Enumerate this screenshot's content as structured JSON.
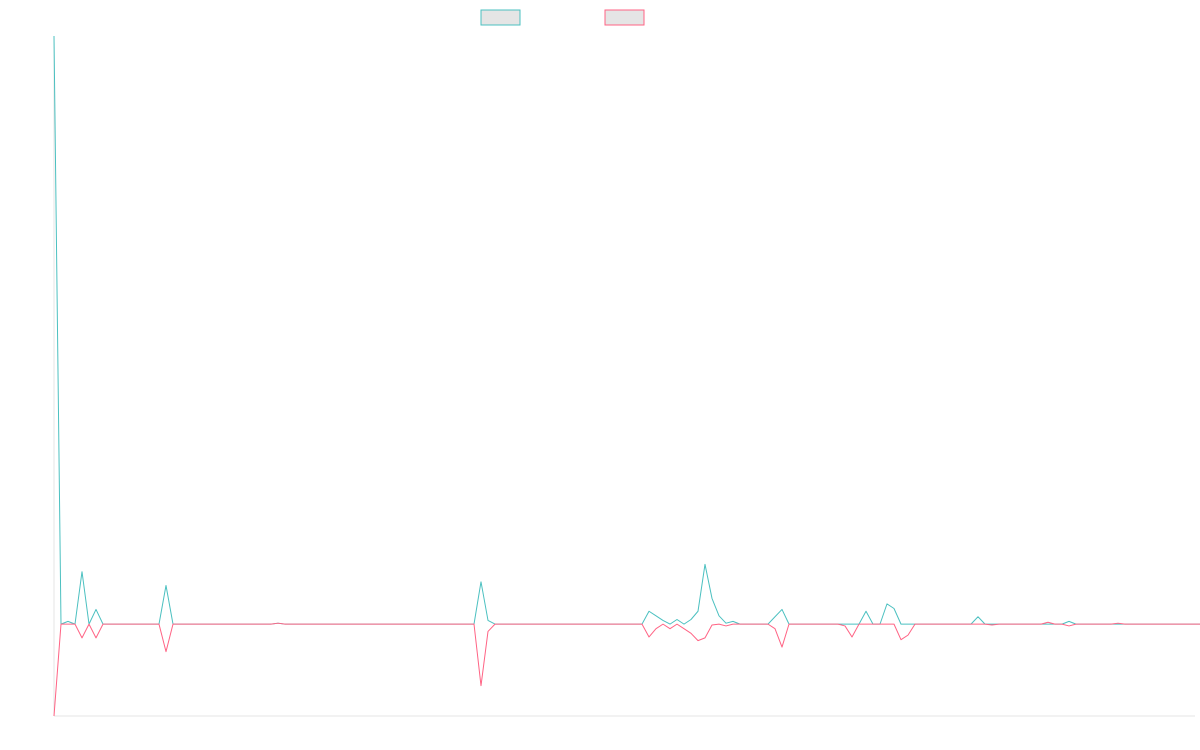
{
  "chart_data": {
    "type": "line",
    "title": "",
    "xlabel": "",
    "ylabel": "",
    "grid": false,
    "legend_position": "top",
    "x_count": 164,
    "ylim": [
      -10,
      64
    ],
    "series": [
      {
        "name": "",
        "color": "#4bc0c0",
        "values": [
          64,
          0,
          0.3,
          0,
          5.7,
          0,
          1.6,
          0,
          0,
          0,
          0,
          0,
          0,
          0,
          0,
          0,
          4.2,
          0,
          0,
          0,
          0,
          0,
          0,
          0,
          0,
          0,
          0,
          0,
          0,
          0,
          0,
          0,
          0.1,
          0,
          0,
          0,
          0,
          0,
          0,
          0,
          0,
          0,
          0,
          0,
          0,
          0,
          0,
          0,
          0,
          0,
          0,
          0,
          0,
          0,
          0,
          0,
          0,
          0,
          0,
          0,
          0,
          4.6,
          0.4,
          0,
          0,
          0,
          0,
          0,
          0,
          0,
          0,
          0,
          0,
          0,
          0,
          0,
          0,
          0,
          0,
          0,
          0,
          0,
          0,
          0,
          0,
          1.4,
          0.9,
          0.4,
          0,
          0.5,
          0,
          0.5,
          1.4,
          6.5,
          2.8,
          0.9,
          0.1,
          0.3,
          0,
          0,
          0,
          0,
          0,
          0.8,
          1.6,
          0,
          0,
          0,
          0,
          0,
          0,
          0,
          0,
          0,
          0,
          0,
          1.4,
          0,
          0,
          2.2,
          1.7,
          0,
          0,
          0,
          0,
          0,
          0,
          0,
          0,
          0,
          0,
          0,
          0.8,
          0,
          0,
          0,
          0,
          0,
          0,
          0,
          0,
          0,
          0,
          0,
          0,
          0.3,
          0,
          0,
          0,
          0,
          0,
          0,
          0,
          0,
          0,
          0,
          0,
          0,
          0,
          0,
          0,
          0,
          0,
          0,
          0,
          0
        ]
      },
      {
        "name": "",
        "color": "#ff6384",
        "values": [
          -10,
          0,
          0,
          0,
          -1.5,
          0,
          -1.5,
          0,
          0,
          0,
          0,
          0,
          0,
          0,
          0,
          0,
          -3,
          0,
          0,
          0,
          0,
          0,
          0,
          0,
          0,
          0,
          0,
          0,
          0,
          0,
          0,
          0,
          0.1,
          0,
          0,
          0,
          0,
          0,
          0,
          0,
          0,
          0,
          0,
          0,
          0,
          0,
          0,
          0,
          0,
          0,
          0,
          0,
          0,
          0,
          0,
          0,
          0,
          0,
          0,
          0,
          0,
          -6.7,
          -0.8,
          0,
          0,
          0,
          0,
          0,
          0,
          0,
          0,
          0,
          0,
          0,
          0,
          0,
          0,
          0,
          0,
          0,
          0,
          0,
          0,
          0,
          0,
          -1.4,
          -0.5,
          0,
          -0.5,
          0,
          -0.5,
          -1,
          -1.8,
          -1.5,
          -0.1,
          0,
          -0.2,
          0,
          0,
          0,
          0,
          0,
          0,
          -0.5,
          -2.5,
          0,
          0,
          0,
          0,
          0,
          0,
          0,
          0,
          -0.2,
          -1.4,
          0,
          0,
          0,
          0,
          0,
          0,
          -1.7,
          -1.2,
          0,
          0,
          0,
          0,
          0,
          0,
          0,
          0,
          0,
          0,
          0,
          -0.1,
          0,
          0,
          0,
          0,
          0,
          0,
          0,
          0.2,
          0,
          0,
          -0.2,
          0,
          0,
          0,
          0,
          0,
          0,
          0.1,
          0,
          0,
          0,
          0,
          0,
          0,
          0,
          0,
          0,
          0,
          0,
          0,
          0,
          0
        ]
      }
    ]
  }
}
